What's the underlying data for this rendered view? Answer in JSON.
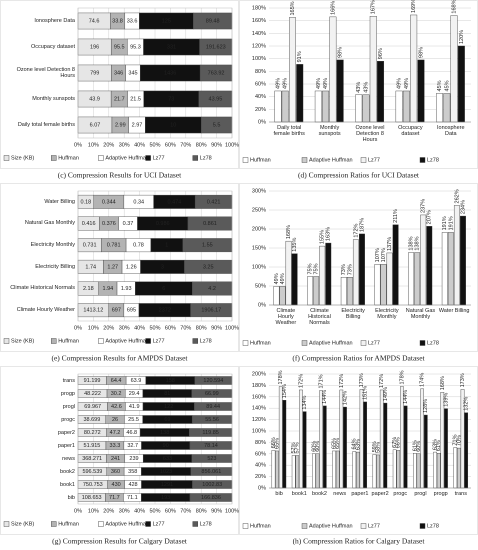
{
  "chart_data": [
    {
      "type": "bar",
      "orientation": "horizontal",
      "stacking": "percent",
      "caption": "(c) Compression Results for UCI Dataset",
      "categories": [
        "Ionosphere Data",
        "Occupacy dataset",
        "Ozone level Detection 8 Hours",
        "Monthly sunspots",
        "Daily total female births"
      ],
      "series": [
        {
          "name": "Size (KB)",
          "color": "#e6e6e6",
          "values": [
            74.6,
            196,
            799,
            43.9,
            6.07
          ]
        },
        {
          "name": "Huffman",
          "color": "#b3b3b3",
          "values": [
            33.8,
            95.5,
            346,
            21.7,
            2.99
          ]
        },
        {
          "name": "Adaptive Huffman",
          "color": "#ffffff",
          "values": [
            33.6,
            95.3,
            345,
            21.5,
            2.97
          ]
        },
        {
          "name": "Lz77",
          "color": "#111111",
          "values": [
            125,
            331,
            1436,
            73,
            10
          ]
        },
        {
          "name": "Lz78",
          "color": "#5a5a5a",
          "values": [
            89.48,
            191.623,
            763.92,
            43.95,
            5.5
          ]
        }
      ],
      "xlim": [
        0,
        100
      ],
      "xticks": [
        {
          "value": 0,
          "label": "0%"
        },
        {
          "value": 10,
          "label": "10%"
        },
        {
          "value": 20,
          "label": "20%"
        },
        {
          "value": 30,
          "label": "30%"
        },
        {
          "value": 40,
          "label": "40%"
        },
        {
          "value": 50,
          "label": "50%"
        },
        {
          "value": 60,
          "label": "60%"
        },
        {
          "value": 70,
          "label": "70%"
        },
        {
          "value": 80,
          "label": "80%"
        },
        {
          "value": 90,
          "label": "90%"
        },
        {
          "value": 100,
          "label": "100%"
        }
      ],
      "grid": true,
      "legend": "bottom"
    },
    {
      "type": "bar",
      "orientation": "vertical",
      "stacking": "none",
      "caption": "(d) Compression Ratios for UCI Dataset",
      "categories": [
        "Daily total female births",
        "Monthly sunspots",
        "Ozone level Detection 8 Hours",
        "Occupacy dataset",
        "Ionosphere Data"
      ],
      "series": [
        {
          "name": "Huffman",
          "color": "#ffffff",
          "values": [
            49,
            49,
            43,
            49,
            45
          ],
          "value_labels": [
            "49%",
            "49%",
            "43%",
            "49%",
            "45%"
          ]
        },
        {
          "name": "Adaptive Huffman",
          "color": "#cccccc",
          "values": [
            49,
            49,
            43,
            49,
            45
          ],
          "value_labels": [
            "49%",
            "49%",
            "43%",
            "49%",
            "45%"
          ]
        },
        {
          "name": "Lz77",
          "color": "#f2f2f2",
          "values": [
            165,
            166,
            167,
            169,
            168
          ],
          "value_labels": [
            "165%",
            "166%",
            "167%",
            "169%",
            "168%"
          ]
        },
        {
          "name": "Lz78",
          "color": "#111111",
          "values": [
            91,
            98,
            96,
            98,
            120
          ],
          "value_labels": [
            "91%",
            "98%",
            "96%",
            "98%",
            "120%"
          ]
        }
      ],
      "ylim": [
        0,
        180
      ],
      "yticks": [
        {
          "value": 0,
          "label": "0%"
        },
        {
          "value": 20,
          "label": "20%"
        },
        {
          "value": 40,
          "label": "40%"
        },
        {
          "value": 60,
          "label": "60%"
        },
        {
          "value": 80,
          "label": "80%"
        },
        {
          "value": 100,
          "label": "100%"
        },
        {
          "value": 120,
          "label": "120%"
        },
        {
          "value": 140,
          "label": "140%"
        },
        {
          "value": 160,
          "label": "160%"
        },
        {
          "value": 180,
          "label": "180%"
        }
      ],
      "grid": true,
      "legend": "bottom"
    },
    {
      "type": "bar",
      "orientation": "horizontal",
      "stacking": "percent",
      "caption": "(e) Compression Results for AMPDS Dataset",
      "categories": [
        "Water Billing",
        "Natural Gas Monthly",
        "Electricity Monthly",
        "Electricity Billing",
        "Climate Historical Normals",
        "Climate Hourly Weather"
      ],
      "series": [
        {
          "name": "Size (KB)",
          "color": "#e6e6e6",
          "values": [
            0.18,
            0.416,
            0.731,
            1.74,
            2.18,
            1413.12
          ]
        },
        {
          "name": "Huffman",
          "color": "#b3b3b3",
          "values": [
            0.344,
            0.376,
            0.781,
            1.27,
            1.94,
            697
          ]
        },
        {
          "name": "Adaptive Huffman",
          "color": "#ffffff",
          "values": [
            0.34,
            0.37,
            0.78,
            1.26,
            1.93,
            695
          ]
        },
        {
          "name": "Lz77",
          "color": "#111111",
          "values": [
            0.474,
            0.986,
            1,
            3,
            6,
            2372
          ]
        },
        {
          "name": "Lz78",
          "color": "#5a5a5a",
          "values": [
            0.421,
            0.861,
            1.55,
            3.25,
            4.2,
            1906.17
          ]
        }
      ],
      "xlim": [
        0,
        100
      ],
      "xticks": [
        {
          "value": 0,
          "label": "0%"
        },
        {
          "value": 10,
          "label": "10%"
        },
        {
          "value": 20,
          "label": "20%"
        },
        {
          "value": 30,
          "label": "30%"
        },
        {
          "value": 40,
          "label": "40%"
        },
        {
          "value": 50,
          "label": "50%"
        },
        {
          "value": 60,
          "label": "60%"
        },
        {
          "value": 70,
          "label": "70%"
        },
        {
          "value": 80,
          "label": "80%"
        },
        {
          "value": 90,
          "label": "90%"
        },
        {
          "value": 100,
          "label": "100%"
        }
      ],
      "grid": true,
      "legend": "bottom"
    },
    {
      "type": "bar",
      "orientation": "vertical",
      "stacking": "none",
      "caption": "(f) Compression Ratios for AMPDS Dataset",
      "categories": [
        "Climate Hourly Weather",
        "Climate Historical Normals",
        "Electricity Billing",
        "Electricity Monthly",
        "Natural Gas Monthly",
        "Water Billing"
      ],
      "series": [
        {
          "name": "Huffman",
          "color": "#ffffff",
          "values": [
            49,
            75,
            73,
            107,
            138,
            191
          ],
          "value_labels": [
            "49%",
            "75%",
            "73%",
            "107%",
            "138%",
            "191%"
          ]
        },
        {
          "name": "Adaptive Huffman",
          "color": "#cccccc",
          "values": [
            49,
            75,
            73,
            107,
            138,
            191
          ],
          "value_labels": [
            "49%",
            "75%",
            "73%",
            "107%",
            "138%",
            "191%"
          ]
        },
        {
          "name": "Lz77",
          "color": "#f2f2f2",
          "values": [
            168,
            155,
            172,
            137,
            237,
            262
          ],
          "value_labels": [
            "168%",
            "155%",
            "172%",
            "137%",
            "237%",
            "262%"
          ]
        },
        {
          "name": "Lz78",
          "color": "#111111",
          "values": [
            135,
            163,
            187,
            211,
            207,
            234
          ],
          "value_labels": [
            "135%",
            "163%",
            "187%",
            "211%",
            "207%",
            "234%"
          ]
        }
      ],
      "ylim": [
        0,
        300
      ],
      "yticks": [
        {
          "value": 0,
          "label": "0%"
        },
        {
          "value": 50,
          "label": "50%"
        },
        {
          "value": 100,
          "label": "100%"
        },
        {
          "value": 150,
          "label": "150%"
        },
        {
          "value": 200,
          "label": "200%"
        },
        {
          "value": 250,
          "label": "250%"
        },
        {
          "value": 300,
          "label": "300%"
        }
      ],
      "grid": true,
      "legend": "bottom"
    },
    {
      "type": "bar",
      "orientation": "horizontal",
      "stacking": "percent",
      "caption": "(g) Compression Results for Calgary Dataset",
      "categories": [
        "trans",
        "progp",
        "progl",
        "progc",
        "paper2",
        "paper1",
        "news",
        "book2",
        "book1",
        "bib"
      ],
      "series": [
        {
          "name": "Size (KB)",
          "color": "#e6e6e6",
          "values": [
            91.199,
            48.222,
            69.967,
            38.699,
            80.272,
            51.915,
            368.271,
            596.539,
            750.753,
            108.653
          ]
        },
        {
          "name": "Huffman",
          "color": "#b3b3b3",
          "values": [
            64.4,
            30.2,
            42.6,
            26,
            47.2,
            33.3,
            241,
            360,
            430,
            71.7
          ]
        },
        {
          "name": "Adaptive Huffman",
          "color": "#ffffff",
          "values": [
            63.9,
            29.4,
            41.9,
            25.5,
            46.8,
            32.7,
            239,
            358,
            428,
            71.1
          ]
        },
        {
          "name": "Lz77",
          "color": "#111111",
          "values": [
            158,
            81,
            122,
            69,
            138,
            90,
            633,
            1023,
            1291,
            193
          ]
        },
        {
          "name": "Lz78",
          "color": "#5a5a5a",
          "values": [
            120.594,
            66.99,
            89.44,
            55.56,
            119.85,
            78.14,
            523,
            856.061,
            1002.83,
            166.836
          ]
        }
      ],
      "xlim": [
        0,
        100
      ],
      "xticks": [
        {
          "value": 0,
          "label": "0%"
        },
        {
          "value": 10,
          "label": "10%"
        },
        {
          "value": 20,
          "label": "20%"
        },
        {
          "value": 30,
          "label": "30%"
        },
        {
          "value": 40,
          "label": "40%"
        },
        {
          "value": 50,
          "label": "50%"
        },
        {
          "value": 60,
          "label": "60%"
        },
        {
          "value": 70,
          "label": "70%"
        },
        {
          "value": 80,
          "label": "80%"
        },
        {
          "value": 90,
          "label": "90%"
        },
        {
          "value": 100,
          "label": "100%"
        }
      ],
      "grid": true,
      "legend": "bottom"
    },
    {
      "type": "bar",
      "orientation": "vertical",
      "stacking": "none",
      "caption": "(h) Compression Ratios for Calgary Dataset",
      "categories": [
        "bib",
        "book1",
        "book2",
        "news",
        "paper1",
        "paper2",
        "progc",
        "progl",
        "progp",
        "trans"
      ],
      "series": [
        {
          "name": "Huffman",
          "color": "#ffffff",
          "values": [
            66,
            57,
            60,
            65,
            64,
            59,
            67,
            61,
            63,
            71
          ],
          "value_labels": [
            "66%",
            "57%",
            "60%",
            "65%",
            "64%",
            "59%",
            "67%",
            "61%",
            "63%",
            "71%"
          ]
        },
        {
          "name": "Adaptive Huffman",
          "color": "#cccccc",
          "values": [
            65,
            57,
            60,
            65,
            63,
            58,
            66,
            60,
            61,
            70
          ],
          "value_labels": [
            "65%",
            "57%",
            "60%",
            "65%",
            "63%",
            "58%",
            "66%",
            "60%",
            "61%",
            "70%"
          ]
        },
        {
          "name": "Lz77",
          "color": "#f2f2f2",
          "values": [
            178,
            172,
            171,
            172,
            173,
            172,
            178,
            174,
            168,
            173
          ],
          "value_labels": [
            "178%",
            "172%",
            "171%",
            "172%",
            "173%",
            "172%",
            "178%",
            "174%",
            "168%",
            "173%"
          ]
        },
        {
          "name": "Lz78",
          "color": "#111111",
          "values": [
            154,
            134,
            144,
            142,
            151,
            149,
            144,
            128,
            139,
            132
          ],
          "value_labels": [
            "154%",
            "134%",
            "144%",
            "142%",
            "151%",
            "149%",
            "144%",
            "128%",
            "139%",
            "132%"
          ]
        }
      ],
      "ylim": [
        0,
        200
      ],
      "yticks": [
        {
          "value": 0,
          "label": "0%"
        },
        {
          "value": 20,
          "label": "20%"
        },
        {
          "value": 40,
          "label": "40%"
        },
        {
          "value": 60,
          "label": "60%"
        },
        {
          "value": 80,
          "label": "80%"
        },
        {
          "value": 100,
          "label": "100%"
        },
        {
          "value": 120,
          "label": "120%"
        },
        {
          "value": 140,
          "label": "140%"
        },
        {
          "value": 160,
          "label": "160%"
        },
        {
          "value": 180,
          "label": "180%"
        },
        {
          "value": 200,
          "label": "200%"
        }
      ],
      "grid": true,
      "legend": "bottom"
    }
  ]
}
